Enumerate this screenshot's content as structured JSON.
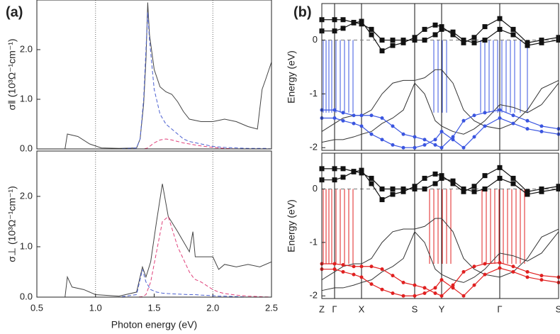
{
  "chart_data": [
    {
      "type": "line",
      "title": "(a)",
      "ylabel": "σ‖ (10³Ω⁻¹cm⁻¹)",
      "xlim": [
        0.5,
        2.5
      ],
      "ylim": [
        0,
        3.0
      ],
      "yticks": [
        {
          "value": 0,
          "label": "0.0"
        },
        {
          "value": 1,
          "label": "1.0"
        },
        {
          "value": 2,
          "label": "2.0"
        }
      ],
      "vlines": [
        1.0,
        2.0
      ],
      "vline_style": "dotted",
      "x": [
        0.5,
        0.74,
        0.76,
        0.85,
        0.95,
        1.05,
        1.2,
        1.35,
        1.38,
        1.41,
        1.43,
        1.445,
        1.46,
        1.5,
        1.55,
        1.6,
        1.65,
        1.7,
        1.75,
        1.8,
        1.9,
        2.0,
        2.1,
        2.2,
        2.3,
        2.38,
        2.42,
        2.45,
        2.5
      ],
      "series": [
        {
          "color": "#444444",
          "style": "solid",
          "values": [
            0,
            0,
            0.3,
            0.25,
            0.1,
            0.02,
            0.01,
            0.02,
            0.2,
            0.9,
            1.8,
            2.95,
            2.3,
            1.6,
            1.25,
            1.15,
            1.1,
            0.95,
            0.75,
            0.6,
            0.55,
            0.55,
            0.6,
            0.55,
            0.45,
            0.4,
            1.2,
            1.4,
            1.75
          ]
        },
        {
          "color": "#4a5fd0",
          "style": "dashed",
          "values": [
            0,
            0,
            0,
            0,
            0,
            0,
            0,
            0.02,
            0.2,
            1.0,
            2.0,
            2.75,
            2.2,
            1.2,
            0.7,
            0.5,
            0.4,
            0.3,
            0.2,
            0.15,
            0.1,
            0.05,
            0.03,
            0.02,
            0.01,
            0.01,
            0.01,
            0.01,
            0
          ]
        },
        {
          "color": "#e0407a",
          "style": "dashed",
          "values": [
            0,
            0,
            0,
            0,
            0,
            0,
            0,
            0,
            0,
            0,
            0.01,
            0.02,
            0.05,
            0.12,
            0.18,
            0.2,
            0.18,
            0.15,
            0.12,
            0.1,
            0.06,
            0.03,
            0.01,
            0,
            0,
            0,
            0,
            0,
            0
          ]
        }
      ]
    },
    {
      "type": "line",
      "ylabel": "σ⊥ (10³Ω⁻¹cm⁻¹)",
      "xlabel": "Photon energy (eV)",
      "xlim": [
        0.5,
        2.5
      ],
      "ylim": [
        0,
        2.9
      ],
      "xticks": [
        {
          "value": 0.5,
          "label": "0.5"
        },
        {
          "value": 1,
          "label": "1.0"
        },
        {
          "value": 1.5,
          "label": "1.5"
        },
        {
          "value": 2,
          "label": "2.0"
        },
        {
          "value": 2.5,
          "label": "2.5"
        }
      ],
      "yticks": [
        {
          "value": 0,
          "label": "0.0"
        },
        {
          "value": 1,
          "label": "1.0"
        },
        {
          "value": 2,
          "label": "2.0"
        }
      ],
      "vlines": [
        1.0,
        2.0
      ],
      "vline_style": "dotted",
      "x": [
        0.5,
        0.74,
        0.76,
        0.8,
        0.9,
        1.0,
        1.2,
        1.35,
        1.4,
        1.43,
        1.47,
        1.52,
        1.57,
        1.62,
        1.7,
        1.8,
        1.83,
        1.85,
        1.9,
        2.0,
        2.05,
        2.1,
        2.2,
        2.3,
        2.4,
        2.5
      ],
      "series": [
        {
          "color": "#444444",
          "style": "solid",
          "values": [
            0,
            0,
            0.4,
            0.2,
            0.15,
            0.05,
            0.02,
            0.1,
            0.6,
            0.4,
            0.7,
            1.5,
            2.25,
            1.6,
            1.3,
            0.9,
            1.3,
            0.8,
            0.8,
            0.8,
            0.55,
            0.65,
            0.6,
            0.65,
            0.6,
            0.7
          ]
        },
        {
          "color": "#4a5fd0",
          "style": "dashed",
          "values": [
            0,
            0,
            0,
            0,
            0,
            0,
            0,
            0.05,
            0.55,
            0.3,
            0.15,
            0.1,
            0.08,
            0.07,
            0.06,
            0.05,
            0.05,
            0.05,
            0.04,
            0.03,
            0.02,
            0.02,
            0.01,
            0,
            0,
            0
          ]
        },
        {
          "color": "#e0407a",
          "style": "dashed",
          "values": [
            0,
            0,
            0,
            0,
            0,
            0,
            0,
            0,
            0.01,
            0.05,
            0.3,
            0.9,
            1.5,
            1.6,
            1.0,
            0.5,
            0.4,
            0.35,
            0.3,
            0.15,
            0.1,
            0.07,
            0.04,
            0.02,
            0.01,
            0
          ]
        }
      ]
    },
    {
      "type": "line",
      "title": "(b)",
      "ylabel": "Energy (eV)",
      "xlim": [
        0,
        3.34
      ],
      "ylim": [
        -2.05,
        0.68
      ],
      "yticks": [
        0,
        -1,
        -2
      ],
      "vlines": [
        0,
        0.18,
        0.56,
        1.31,
        1.69,
        2.51,
        3.34
      ],
      "vline_style": "solid",
      "hline": 0,
      "transitions": {
        "color": "#3a55e0",
        "range": [
          -1.35,
          0
        ],
        "k": [
          0.02,
          0.06,
          0.1,
          0.14,
          0.2,
          0.26,
          0.32,
          0.38,
          0.44,
          1.58,
          1.64,
          1.7,
          1.76,
          2.24,
          2.3,
          2.36,
          2.42,
          2.48,
          2.54,
          2.6,
          2.66,
          2.72,
          2.8,
          2.9
        ]
      },
      "x": [
        0,
        0.18,
        0.3,
        0.45,
        0.56,
        0.7,
        0.85,
        1.0,
        1.15,
        1.31,
        1.45,
        1.6,
        1.69,
        1.85,
        2.0,
        2.15,
        2.3,
        2.51,
        2.7,
        2.9,
        3.1,
        3.34
      ],
      "series": [
        {
          "color": "#111111",
          "style": "solid",
          "marker": "square",
          "values": [
            0.17,
            0.17,
            0.22,
            0.32,
            0.35,
            0.1,
            -0.2,
            -0.1,
            -0.05,
            0.05,
            0.2,
            0.28,
            0.25,
            0.1,
            -0.05,
            0.05,
            0.25,
            0.4,
            0.2,
            -0.05,
            0.0,
            0.05
          ]
        },
        {
          "color": "#111111",
          "style": "solid",
          "marker": "square",
          "values": [
            0.38,
            0.38,
            0.38,
            0.33,
            0.3,
            0.2,
            0.0,
            0.0,
            0.0,
            0.0,
            0.0,
            0.1,
            0.2,
            0.15,
            0.0,
            -0.05,
            0.0,
            0.2,
            0.1,
            -0.1,
            -0.05,
            0.0
          ]
        },
        {
          "color": "#333333",
          "style": "solid",
          "values": [
            -1.7,
            -1.55,
            -1.45,
            -1.4,
            -1.4,
            -1.3,
            -1.0,
            -0.8,
            -0.75,
            -0.75,
            -0.7,
            -0.55,
            -0.55,
            -0.8,
            -1.3,
            -1.5,
            -1.6,
            -1.65,
            -1.55,
            -1.3,
            -0.9,
            -0.75
          ]
        },
        {
          "color": "#333333",
          "style": "solid",
          "values": [
            -1.9,
            -1.85,
            -1.85,
            -1.8,
            -1.75,
            -1.7,
            -1.55,
            -1.45,
            -1.3,
            -0.8,
            -1.0,
            -1.5,
            -1.6,
            -1.7,
            -1.75,
            -1.65,
            -1.5,
            -1.2,
            -1.25,
            -1.35,
            -1.2,
            -0.8
          ]
        },
        {
          "color": "#3a55e0",
          "style": "solid",
          "marker": "circle",
          "values": [
            -1.3,
            -1.3,
            -1.35,
            -1.4,
            -1.4,
            -1.4,
            -1.45,
            -1.6,
            -1.75,
            -1.8,
            -1.85,
            -1.95,
            -2.0,
            -1.8,
            -1.5,
            -1.4,
            -1.35,
            -1.3,
            -1.4,
            -1.5,
            -1.6,
            -1.65
          ]
        },
        {
          "color": "#3a55e0",
          "style": "solid",
          "marker": "circle",
          "values": [
            -1.45,
            -1.45,
            -1.5,
            -1.55,
            -1.6,
            -1.75,
            -1.85,
            -1.95,
            -2.0,
            -2.0,
            -1.95,
            -1.85,
            -1.7,
            -1.85,
            -2.0,
            -1.8,
            -1.6,
            -1.45,
            -1.55,
            -1.65,
            -1.7,
            -1.75
          ]
        }
      ]
    },
    {
      "type": "line",
      "ylabel": "Energy (eV)",
      "xlim": [
        0,
        3.34
      ],
      "ylim": [
        -2.05,
        0.67
      ],
      "yticks": [
        0,
        -1,
        -2
      ],
      "xticks": [
        {
          "value": 0,
          "label": "Z"
        },
        {
          "value": 0.18,
          "label": "Γ"
        },
        {
          "value": 0.56,
          "label": "X"
        },
        {
          "value": 1.31,
          "label": "S"
        },
        {
          "value": 1.69,
          "label": "Y"
        },
        {
          "value": 2.51,
          "label": "Γ"
        },
        {
          "value": 3.34,
          "label": "S"
        }
      ],
      "xgrid": true,
      "hline": 0,
      "transitions": {
        "color": "#e02020",
        "range": [
          -1.4,
          0
        ],
        "k": [
          0.02,
          0.06,
          0.1,
          0.14,
          0.2,
          0.26,
          0.32,
          0.38,
          0.44,
          1.52,
          1.58,
          1.64,
          1.7,
          1.76,
          1.82,
          2.26,
          2.32,
          2.38,
          2.44,
          2.5,
          2.56,
          2.62,
          2.68,
          2.74,
          2.8,
          2.86
        ]
      },
      "x": [
        0,
        0.18,
        0.3,
        0.45,
        0.56,
        0.7,
        0.85,
        1.0,
        1.15,
        1.31,
        1.45,
        1.6,
        1.69,
        1.85,
        2.0,
        2.15,
        2.3,
        2.51,
        2.7,
        2.9,
        3.1,
        3.34
      ],
      "series": [
        {
          "color": "#111111",
          "style": "solid",
          "marker": "square",
          "values": [
            0.17,
            0.17,
            0.22,
            0.32,
            0.35,
            0.1,
            -0.2,
            -0.1,
            -0.05,
            0.05,
            0.2,
            0.28,
            0.25,
            0.1,
            -0.05,
            0.05,
            0.25,
            0.4,
            0.2,
            -0.05,
            0.0,
            0.05
          ]
        },
        {
          "color": "#111111",
          "style": "solid",
          "marker": "square",
          "values": [
            0.38,
            0.38,
            0.38,
            0.33,
            0.3,
            0.2,
            0.0,
            0.0,
            0.0,
            0.0,
            0.0,
            0.1,
            0.2,
            0.15,
            0.0,
            -0.05,
            0.0,
            0.2,
            0.1,
            -0.1,
            -0.05,
            0.0
          ]
        },
        {
          "color": "#333333",
          "style": "solid",
          "values": [
            -1.7,
            -1.55,
            -1.45,
            -1.4,
            -1.4,
            -1.3,
            -1.0,
            -0.8,
            -0.75,
            -0.75,
            -0.7,
            -0.55,
            -0.55,
            -0.8,
            -1.3,
            -1.5,
            -1.6,
            -1.65,
            -1.55,
            -1.3,
            -0.9,
            -0.75
          ]
        },
        {
          "color": "#333333",
          "style": "solid",
          "values": [
            -1.9,
            -1.85,
            -1.85,
            -1.8,
            -1.75,
            -1.7,
            -1.55,
            -1.45,
            -1.3,
            -0.8,
            -1.0,
            -1.5,
            -1.6,
            -1.7,
            -1.75,
            -1.65,
            -1.5,
            -1.2,
            -1.25,
            -1.35,
            -1.2,
            -0.8
          ]
        },
        {
          "color": "#e02020",
          "style": "solid",
          "marker": "circle",
          "values": [
            -1.4,
            -1.4,
            -1.42,
            -1.45,
            -1.45,
            -1.45,
            -1.5,
            -1.62,
            -1.75,
            -1.8,
            -1.85,
            -1.95,
            -2.0,
            -1.8,
            -1.55,
            -1.45,
            -1.4,
            -1.38,
            -1.45,
            -1.55,
            -1.62,
            -1.65
          ]
        },
        {
          "color": "#e02020",
          "style": "solid",
          "marker": "circle",
          "values": [
            -1.5,
            -1.5,
            -1.55,
            -1.6,
            -1.65,
            -1.78,
            -1.88,
            -1.95,
            -2.0,
            -2.0,
            -1.95,
            -1.85,
            -1.7,
            -1.85,
            -2.0,
            -1.8,
            -1.6,
            -1.48,
            -1.55,
            -1.65,
            -1.7,
            -1.75
          ]
        }
      ]
    }
  ]
}
